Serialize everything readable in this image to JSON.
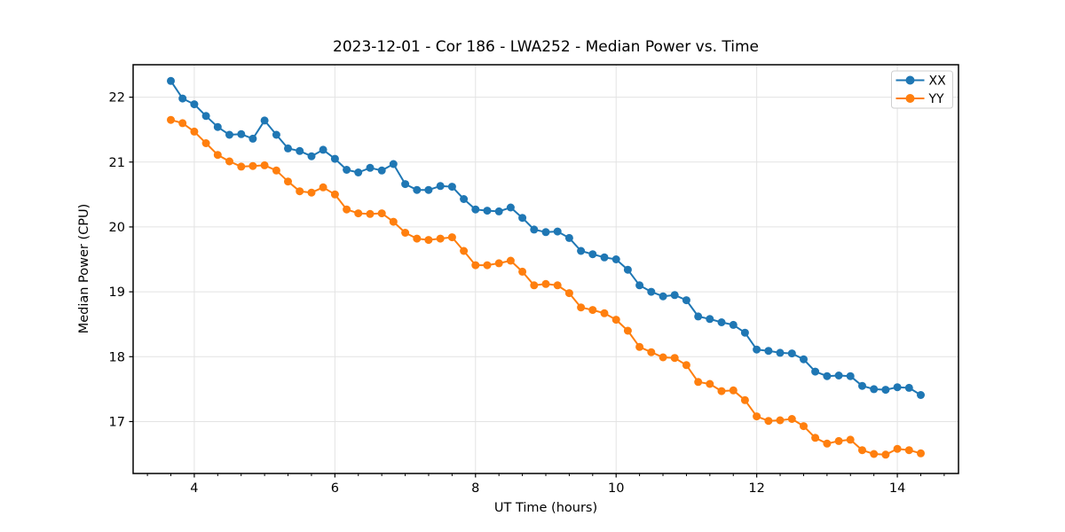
{
  "figure": {
    "background": "#ffffff"
  },
  "chart_data": {
    "type": "line",
    "title": "2023-12-01 - Cor 186 - LWA252 - Median Power vs. Time",
    "xlabel": "UT Time (hours)",
    "ylabel": "Median Power (CPU)",
    "xlim": [
      3.13,
      14.87
    ],
    "ylim": [
      16.2,
      22.5
    ],
    "xticks": [
      4,
      6,
      8,
      10,
      12,
      14
    ],
    "yticks": [
      17,
      18,
      19,
      20,
      21,
      22
    ],
    "x_minor_step": 0.33333,
    "grid": true,
    "grid_color": "#e3e3e3",
    "legend_position": "upper right",
    "x": [
      3.667,
      3.833,
      4.0,
      4.167,
      4.333,
      4.5,
      4.667,
      4.833,
      5.0,
      5.167,
      5.333,
      5.5,
      5.667,
      5.833,
      6.0,
      6.167,
      6.333,
      6.5,
      6.667,
      6.833,
      7.0,
      7.167,
      7.333,
      7.5,
      7.667,
      7.833,
      8.0,
      8.167,
      8.333,
      8.5,
      8.667,
      8.833,
      9.0,
      9.167,
      9.333,
      9.5,
      9.667,
      9.833,
      10.0,
      10.167,
      10.333,
      10.5,
      10.667,
      10.833,
      11.0,
      11.167,
      11.333,
      11.5,
      11.667,
      11.833,
      12.0,
      12.167,
      12.333,
      12.5,
      12.667,
      12.833,
      13.0,
      13.167,
      13.333,
      13.5,
      13.667,
      13.833,
      14.0,
      14.167,
      14.333
    ],
    "series": [
      {
        "name": "XX",
        "color": "#1f77b4",
        "marker": "circle",
        "values": [
          22.25,
          21.98,
          21.89,
          21.71,
          21.54,
          21.42,
          21.43,
          21.36,
          21.64,
          21.42,
          21.21,
          21.17,
          21.09,
          21.19,
          21.05,
          20.88,
          20.84,
          20.91,
          20.87,
          20.97,
          20.66,
          20.57,
          20.57,
          20.63,
          20.62,
          20.43,
          20.27,
          20.25,
          20.24,
          20.3,
          20.14,
          19.96,
          19.92,
          19.93,
          19.83,
          19.63,
          19.58,
          19.53,
          19.5,
          19.34,
          19.1,
          19.0,
          18.93,
          18.95,
          18.87,
          18.62,
          18.58,
          18.53,
          18.49,
          18.37,
          18.11,
          18.09,
          18.06,
          18.05,
          17.96,
          17.77,
          17.7,
          17.71,
          17.7,
          17.55,
          17.5,
          17.49,
          17.53,
          17.52,
          17.41
        ]
      },
      {
        "name": "YY",
        "color": "#ff7f0e",
        "marker": "circle",
        "values": [
          21.65,
          21.6,
          21.47,
          21.29,
          21.11,
          21.01,
          20.93,
          20.94,
          20.95,
          20.87,
          20.7,
          20.55,
          20.53,
          20.61,
          20.5,
          20.27,
          20.21,
          20.2,
          20.21,
          20.08,
          19.91,
          19.82,
          19.8,
          19.82,
          19.84,
          19.63,
          19.41,
          19.41,
          19.44,
          19.48,
          19.31,
          19.1,
          19.12,
          19.1,
          18.98,
          18.76,
          18.72,
          18.67,
          18.57,
          18.4,
          18.15,
          18.07,
          17.99,
          17.98,
          17.87,
          17.61,
          17.58,
          17.47,
          17.48,
          17.33,
          17.08,
          17.01,
          17.02,
          17.04,
          16.93,
          16.75,
          16.66,
          16.7,
          16.72,
          16.56,
          16.5,
          16.49,
          16.58,
          16.56,
          16.51
        ]
      }
    ]
  }
}
